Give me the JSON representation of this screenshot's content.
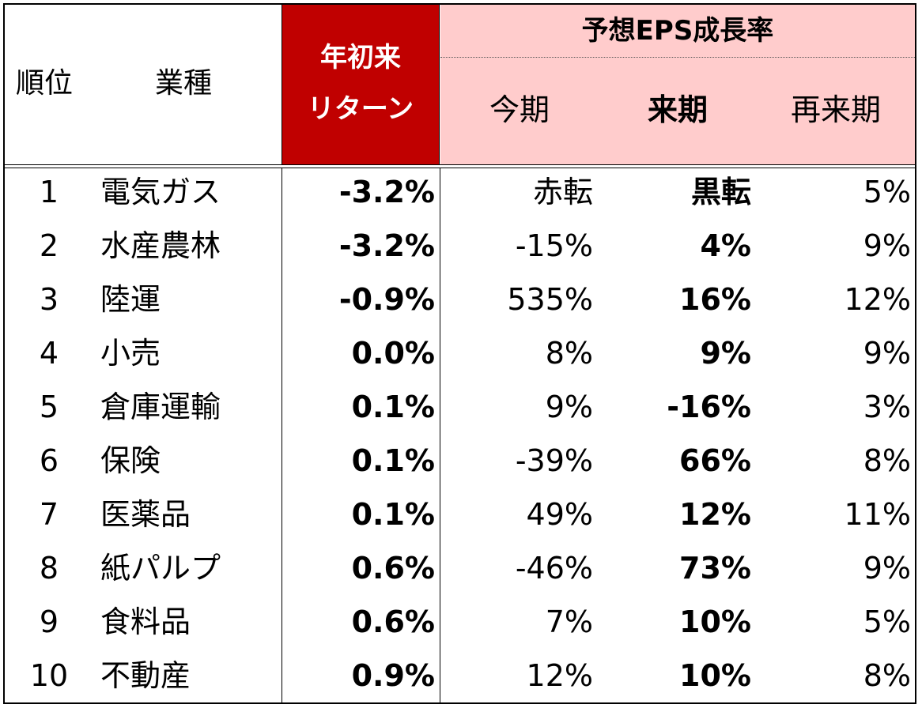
{
  "header": {
    "rank": "順位",
    "industry": "業種",
    "ytd_line1": "年初来",
    "ytd_line2": "リターン",
    "eps_title": "予想EPS成長率",
    "this_term": "今期",
    "next_term": "来期",
    "term_after_next": "再来期"
  },
  "colors": {
    "ytd_header_bg": "#c00000",
    "eps_header_bg": "#ffcccc"
  },
  "rows": [
    {
      "rank": "1",
      "industry": "電気ガス",
      "ytd": "-3.2%",
      "this_term": "赤転",
      "next_term": "黒転",
      "after_next": "5%"
    },
    {
      "rank": "2",
      "industry": "水産農林",
      "ytd": "-3.2%",
      "this_term": "-15%",
      "next_term": "4%",
      "after_next": "9%"
    },
    {
      "rank": "3",
      "industry": "陸運",
      "ytd": "-0.9%",
      "this_term": "535%",
      "next_term": "16%",
      "after_next": "12%"
    },
    {
      "rank": "4",
      "industry": "小売",
      "ytd": "0.0%",
      "this_term": "8%",
      "next_term": "9%",
      "after_next": "9%"
    },
    {
      "rank": "5",
      "industry": "倉庫運輸",
      "ytd": "0.1%",
      "this_term": "9%",
      "next_term": "-16%",
      "after_next": "3%"
    },
    {
      "rank": "6",
      "industry": "保険",
      "ytd": "0.1%",
      "this_term": "-39%",
      "next_term": "66%",
      "after_next": "8%"
    },
    {
      "rank": "7",
      "industry": "医薬品",
      "ytd": "0.1%",
      "this_term": "49%",
      "next_term": "12%",
      "after_next": "11%"
    },
    {
      "rank": "8",
      "industry": "紙パルプ",
      "ytd": "0.6%",
      "this_term": "-46%",
      "next_term": "73%",
      "after_next": "9%"
    },
    {
      "rank": "9",
      "industry": "食料品",
      "ytd": "0.6%",
      "this_term": "7%",
      "next_term": "10%",
      "after_next": "5%"
    },
    {
      "rank": "10",
      "industry": "不動産",
      "ytd": "0.9%",
      "this_term": "12%",
      "next_term": "10%",
      "after_next": "8%"
    }
  ]
}
